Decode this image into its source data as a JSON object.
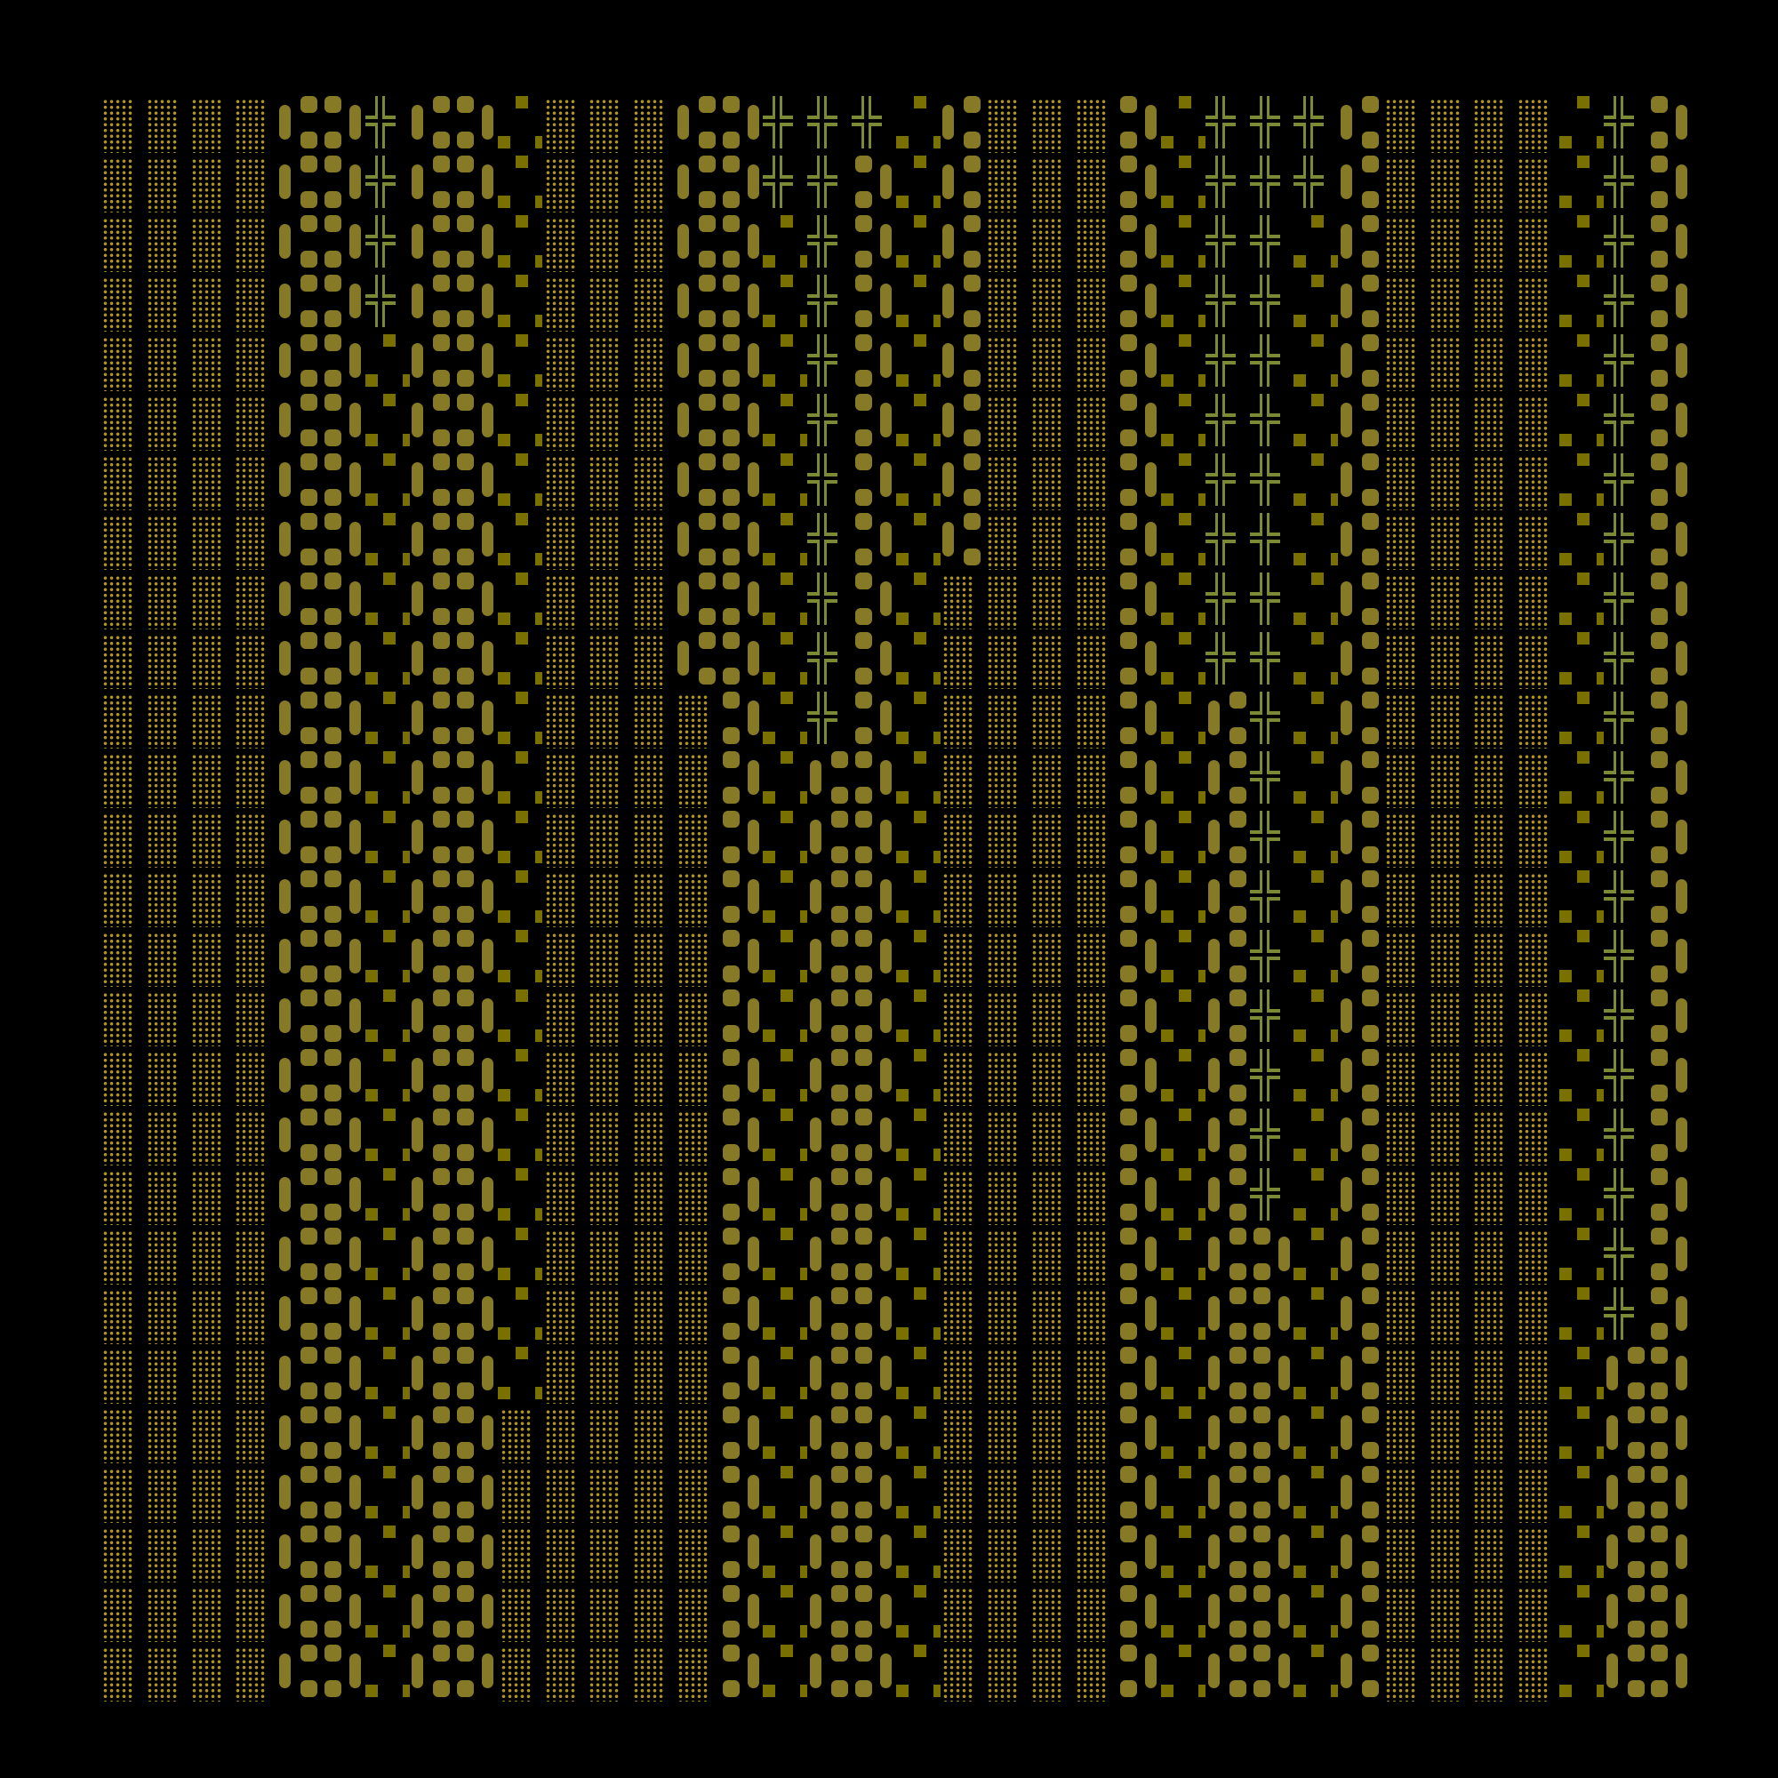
{
  "colors": {
    "background": "#000000",
    "dots": "#b0961e",
    "block": "#877a26",
    "square": "#7a7000",
    "cross": "#7d8a35"
  },
  "legend": {
    "d": "dotted-tile",
    "b": "block-tile",
    "x": "cross-tile"
  },
  "grid": [
    "ddddbbxbbbdddbbxxxbbdddbbxxxbddddbxb",
    "ddddbbxbbbdddbbxxbbbdddbbxxxbddddbxb",
    "ddddbbxbbbdddbbbxbbbdddbbxxbbddddbxb",
    "ddddbbxbbbdddbbbxbbbdddbbxxbbddddbxb",
    "ddddbbbbbbdddbbbxbbbdddbbxxbbddddbxb",
    "ddddbbbbbbdddbbbxbbbdddbbxxbbddddbxb",
    "ddddbbbbbbdddbbbxbbbdddbbxxbbddddbxb",
    "ddddbbbbbbdddbbbxbbbdddbbxxbbddddbxb",
    "ddddbbbbbbdddbbbxbbddddbbxxbbddddbxb",
    "ddddbbbbbbdddbbbxbbddddbbxxbbddddbxb",
    "ddddbbbbbbddddbbxbbddddbbbxbbddddbxb",
    "ddddbbbbbbddddbbbbbddddbbbxbbddddbxb",
    "ddddbbbbbbddddbbbbbddddbbbxbbddddbxb",
    "ddddbbbbbbddddbbbbbddddbbbxbbddddbxb",
    "ddddbbbbbbddddbbbbbddddbbbxbbddddbxb",
    "ddddbbbbbbddddbbbbbddddbbbxbbddddbxb",
    "ddddbbbbbbddddbbbbbddddbbbxbbddddbxb",
    "ddddbbbbbbddddbbbbbddddbbbxbbddddbxb",
    "ddddbbbbbbddddbbbbbddddbbbxbbddddbxb",
    "ddddbbbbbbddddbbbbbddddbbbbbbddddbxb",
    "ddddbbbbbbddddbbbbbddddbbbbbbddddbxb",
    "ddddbbbbbbddddbbbbbddddbbbbbbddddbbb",
    "ddddbbbbbdddddbbbbbddddbbbbbbddddbbb",
    "ddddbbbbbdddddbbbbbddddbbbbbbddddbbb",
    "ddddbbbbbdddddbbbbbddddbbbbbbddddbbb",
    "ddddbbbbbdddddbbbbbddddbbbbbbddddbbb",
    "ddddbbbbbdddddbbbbbddddbbbbbbddddbbb"
  ]
}
